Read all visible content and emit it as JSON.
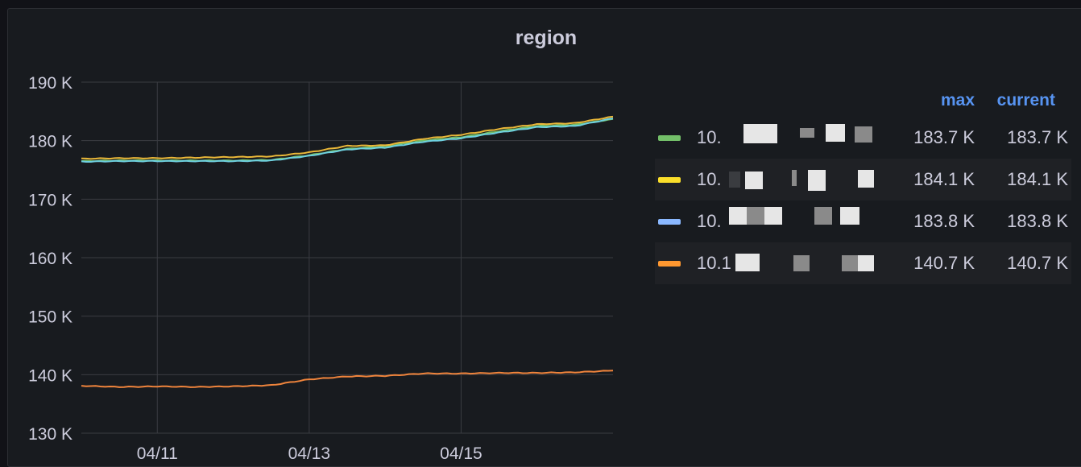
{
  "panel": {
    "title": "region"
  },
  "legend": {
    "columns": {
      "max": "max",
      "current": "current"
    },
    "items": [
      {
        "label": "10.",
        "color": "#73bf69",
        "max": "183.7 K",
        "current": "183.7 K"
      },
      {
        "label": "10.",
        "color": "#fade2a",
        "max": "184.1 K",
        "current": "184.1 K"
      },
      {
        "label": "10.",
        "color": "#8ab8ff",
        "max": "183.8 K",
        "current": "183.8 K"
      },
      {
        "label": "10.1",
        "color": "#ff9830",
        "max": "140.7 K",
        "current": "140.7 K"
      }
    ]
  },
  "chart_data": {
    "type": "line",
    "title": "region",
    "xlabel": "",
    "ylabel": "",
    "x_ticks": [
      "04/11",
      "04/13",
      "04/15"
    ],
    "y_ticks": [
      "130 K",
      "140 K",
      "150 K",
      "160 K",
      "170 K",
      "180 K",
      "190 K"
    ],
    "ylim": [
      130000,
      190000
    ],
    "grid": true,
    "legend_position": "right",
    "x": [
      "04/10",
      "04/10.5",
      "04/11",
      "04/11.5",
      "04/12",
      "04/12.5",
      "04/13",
      "04/13.5",
      "04/14",
      "04/14.5",
      "04/15",
      "04/15.5",
      "04/16",
      "04/16.5",
      "04/17"
    ],
    "series": [
      {
        "name": "10.",
        "color": "#73bf69",
        "values": [
          176500,
          176600,
          176600,
          176600,
          176600,
          176700,
          177500,
          178600,
          179000,
          180000,
          180600,
          181600,
          182500,
          182700,
          183700
        ]
      },
      {
        "name": "10.",
        "color": "#eab839",
        "values": [
          176900,
          177000,
          177000,
          177100,
          177200,
          177300,
          178000,
          179100,
          179200,
          180300,
          181000,
          182000,
          182800,
          183000,
          184100
        ]
      },
      {
        "name": "10.",
        "color": "#6ed0e0",
        "values": [
          176400,
          176500,
          176500,
          176500,
          176500,
          176600,
          177400,
          178500,
          178800,
          179800,
          180400,
          181400,
          182300,
          182500,
          183800
        ]
      },
      {
        "name": "10.1",
        "color": "#ef843c",
        "values": [
          138100,
          137900,
          138000,
          137900,
          138000,
          138200,
          139200,
          139700,
          139800,
          140200,
          140200,
          140300,
          140300,
          140400,
          140700
        ]
      }
    ]
  }
}
